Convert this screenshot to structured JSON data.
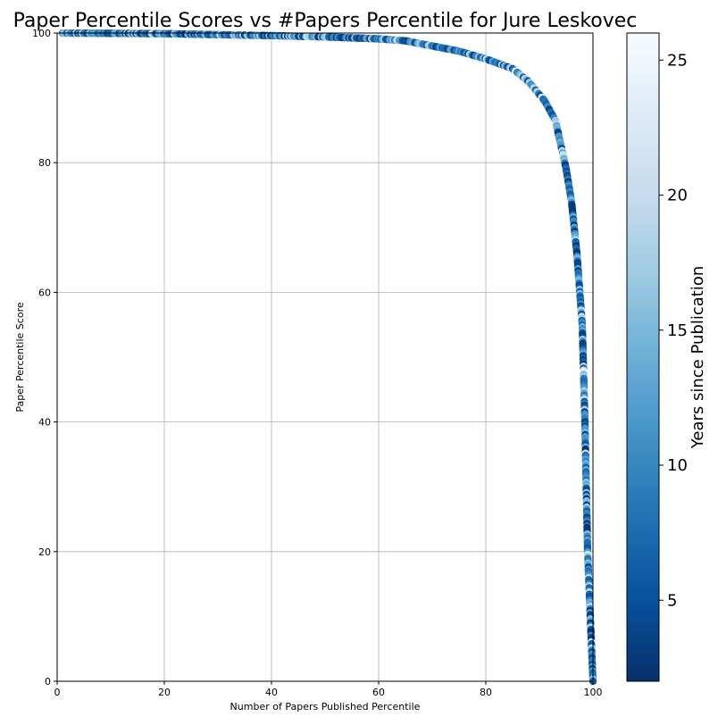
{
  "chart_data": {
    "type": "scatter",
    "title": "Paper Percentile Scores vs #Papers Percentile for Jure Leskovec",
    "xlabel": "Number of Papers Published Percentile",
    "ylabel": "Paper Percentile Score",
    "xlim": [
      0,
      100
    ],
    "ylim": [
      0,
      100
    ],
    "xticks": [
      0,
      20,
      40,
      60,
      80,
      100
    ],
    "yticks": [
      0,
      20,
      40,
      60,
      80,
      100
    ],
    "grid": true,
    "colormap": "Blues_r",
    "colorbar": {
      "label": "Years since Publication",
      "range": [
        2,
        26
      ],
      "ticks": [
        5,
        10,
        15,
        20,
        25
      ]
    },
    "curve_description": {
      "x_key": [
        0,
        20,
        40,
        50,
        60,
        65,
        70,
        75,
        80,
        85,
        88,
        91,
        93,
        95,
        96,
        97,
        98,
        98.5,
        99,
        100
      ],
      "y_key": [
        100,
        99.9,
        99.6,
        99.4,
        99.1,
        98.8,
        98.0,
        97.2,
        96.0,
        94.5,
        92.5,
        89.5,
        86.5,
        79.0,
        74.0,
        66.0,
        55.0,
        40.0,
        20.0,
        0.0
      ]
    },
    "num_points": 600
  }
}
